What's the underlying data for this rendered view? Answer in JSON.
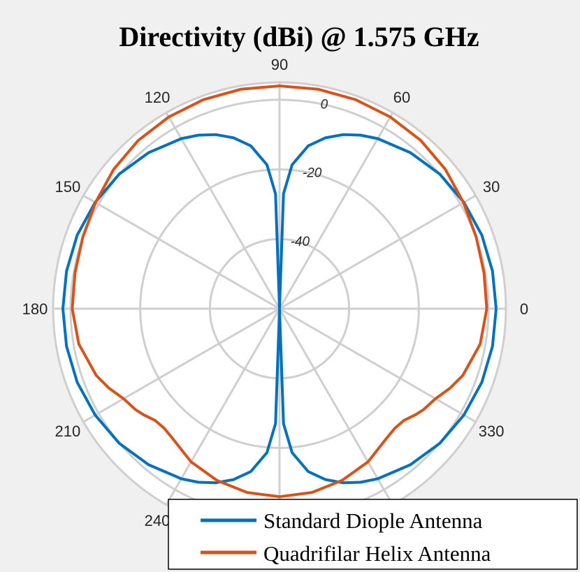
{
  "chart_data": {
    "type": "polar-line",
    "title": "Directivity (dBi) @ 1.575 GHz",
    "angle_unit": "degrees",
    "angle_ticks": [
      0,
      30,
      60,
      90,
      120,
      150,
      180,
      210,
      240,
      270,
      300,
      330
    ],
    "angle_tick_labels": [
      "0",
      "30",
      "60",
      "90",
      "120",
      "150",
      "180",
      "210",
      "240",
      "",
      "",
      "330"
    ],
    "r_ticks": [
      -40,
      -20,
      0
    ],
    "r_tick_labels": [
      "-40",
      "-20",
      "0"
    ],
    "r_lim": [
      -60,
      5
    ],
    "r_tick_angle_deg": 80,
    "grid": true,
    "legend_position": "bottom-right",
    "series": [
      {
        "name": "Standard Diople Antenna",
        "color": "#0072BD",
        "theta": [
          0,
          10,
          20,
          30,
          40,
          50,
          60,
          65,
          70,
          75,
          80,
          85,
          88,
          90,
          92,
          95,
          100,
          105,
          110,
          115,
          120,
          130,
          140,
          150,
          160,
          170,
          180,
          190,
          200,
          210,
          220,
          230,
          240,
          245,
          250,
          255,
          260,
          265,
          268,
          270,
          272,
          275,
          280,
          285,
          290,
          295,
          300,
          310,
          320,
          330,
          340,
          350,
          360
        ],
        "r": [
          2.2,
          2.1,
          1.8,
          1.1,
          0.1,
          -1.5,
          -3.6,
          -5.0,
          -6.8,
          -9.2,
          -12.5,
          -18.5,
          -27,
          -60,
          -27,
          -18.5,
          -12.5,
          -9.2,
          -6.8,
          -5.0,
          -3.6,
          -1.5,
          0.1,
          1.1,
          1.8,
          2.1,
          2.2,
          2.1,
          1.8,
          1.1,
          0.1,
          -1.5,
          -3.6,
          -5.0,
          -6.8,
          -9.2,
          -12.5,
          -18.5,
          -27,
          -60,
          -27,
          -18.5,
          -12.5,
          -9.2,
          -6.8,
          -5.0,
          -3.6,
          -1.5,
          0.1,
          1.1,
          1.8,
          2.1,
          2.2
        ]
      },
      {
        "name": "Quadrifilar Helix Antenna",
        "color": "#D95319",
        "theta": [
          0,
          10,
          20,
          30,
          40,
          50,
          60,
          70,
          80,
          90,
          100,
          110,
          120,
          130,
          140,
          150,
          160,
          170,
          180,
          190,
          200,
          205,
          210,
          215,
          218,
          222,
          226,
          230,
          240,
          250,
          260,
          270,
          280,
          290,
          300,
          310,
          314,
          318,
          322,
          325,
          330,
          335,
          340,
          350,
          360
        ],
        "r": [
          -0.5,
          -0.4,
          0.1,
          1.0,
          2.2,
          3.1,
          3.6,
          3.9,
          4.0,
          4.0,
          4.0,
          3.9,
          3.6,
          3.1,
          2.2,
          1.0,
          0.1,
          -0.4,
          -0.5,
          -1.5,
          -4.0,
          -6.0,
          -8.3,
          -9.5,
          -10.5,
          -12.0,
          -12.3,
          -11.8,
          -9.2,
          -7.5,
          -6.4,
          -6.0,
          -6.4,
          -7.5,
          -9.2,
          -11.8,
          -12.3,
          -12.0,
          -10.5,
          -9.5,
          -8.3,
          -6.0,
          -4.0,
          -1.5,
          -0.5
        ]
      }
    ]
  }
}
